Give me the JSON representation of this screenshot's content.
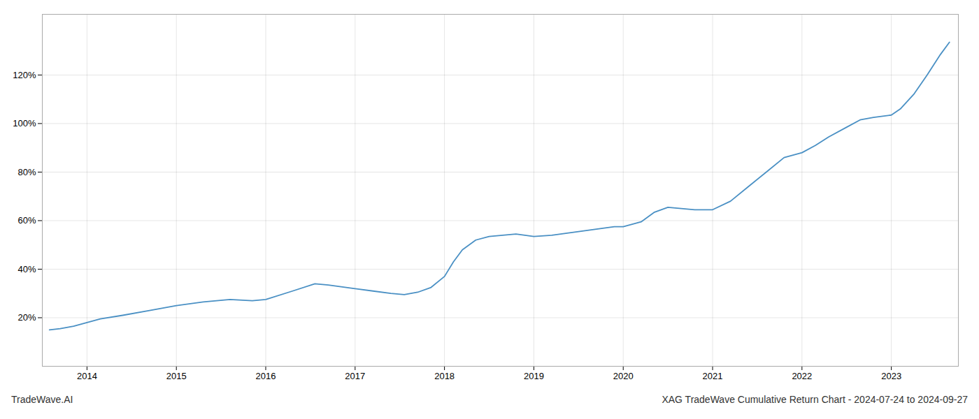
{
  "chart_data": {
    "type": "line",
    "title": "XAG TradeWave Cumulative Return Chart - 2024-07-24 to 2024-09-27",
    "annotations": [
      "TradeWave.AI"
    ],
    "color": "#4a90c4",
    "grid": true,
    "x": [
      2013.58,
      2013.7,
      2013.85,
      2014.0,
      2014.15,
      2014.4,
      2014.7,
      2015.0,
      2015.3,
      2015.6,
      2015.85,
      2016.0,
      2016.3,
      2016.55,
      2016.7,
      2016.9,
      2017.0,
      2017.2,
      2017.4,
      2017.55,
      2017.7,
      2017.85,
      2018.0,
      2018.1,
      2018.2,
      2018.35,
      2018.5,
      2018.65,
      2018.8,
      2019.0,
      2019.2,
      2019.5,
      2019.7,
      2019.9,
      2020.0,
      2020.2,
      2020.35,
      2020.5,
      2020.65,
      2020.8,
      2021.0,
      2021.2,
      2021.4,
      2021.6,
      2021.8,
      2022.0,
      2022.15,
      2022.3,
      2022.5,
      2022.65,
      2022.8,
      2023.0,
      2023.1,
      2023.25,
      2023.4,
      2023.55,
      2023.65
    ],
    "values": [
      15.0,
      15.5,
      16.5,
      18.0,
      19.5,
      21.0,
      23.0,
      25.0,
      26.5,
      27.5,
      27.0,
      27.5,
      31.0,
      34.0,
      33.5,
      32.5,
      32.0,
      31.0,
      30.0,
      29.5,
      30.5,
      32.5,
      37.0,
      43.0,
      48.0,
      52.0,
      53.5,
      54.0,
      54.5,
      53.5,
      54.0,
      55.5,
      56.5,
      57.5,
      57.5,
      59.5,
      63.5,
      65.5,
      65.0,
      64.5,
      64.5,
      68.0,
      74.0,
      80.0,
      86.0,
      88.0,
      91.0,
      94.5,
      98.5,
      101.5,
      102.5,
      103.5,
      106.0,
      112.0,
      120.0,
      128.5,
      133.5
    ],
    "xlim": [
      2013.5,
      2023.75
    ],
    "ylim": [
      0,
      145
    ],
    "xticks": [
      2014,
      2015,
      2016,
      2017,
      2018,
      2019,
      2020,
      2021,
      2022,
      2023
    ],
    "yticks": [
      {
        "value": 20,
        "label": "20%"
      },
      {
        "value": 40,
        "label": "40%"
      },
      {
        "value": 60,
        "label": "60%"
      },
      {
        "value": 80,
        "label": "80%"
      },
      {
        "value": 100,
        "label": "100%"
      },
      {
        "value": 120,
        "label": "120%"
      }
    ]
  }
}
